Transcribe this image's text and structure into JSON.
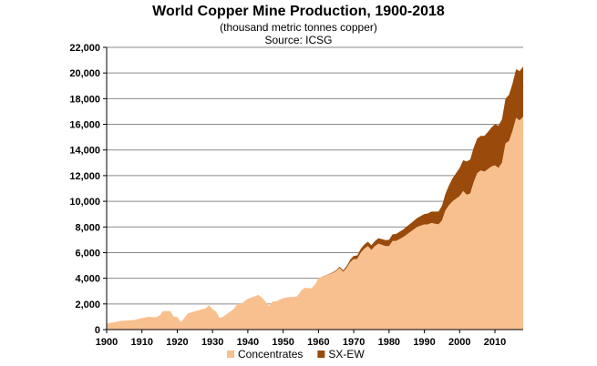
{
  "chart_data": {
    "type": "area",
    "title": "World Copper Mine Production, 1900-2018",
    "subtitle": "(thousand  metric tonnes copper)",
    "source": "Source: ICSG",
    "xlabel": "",
    "ylabel": "",
    "xlim": [
      1900,
      2018
    ],
    "ylim": [
      0,
      22000
    ],
    "grid": true,
    "legend_position": "bottom",
    "x_ticks": [
      "1900",
      "1910",
      "1920",
      "1930",
      "1940",
      "1950",
      "1960",
      "1970",
      "1980",
      "1990",
      "2000",
      "2010"
    ],
    "y_ticks": [
      "0",
      "2,000",
      "4,000",
      "6,000",
      "8,000",
      "10,000",
      "12,000",
      "14,000",
      "16,000",
      "18,000",
      "20,000",
      "22,000"
    ],
    "stacked": true,
    "series": [
      {
        "name": "Concentrates",
        "color": "#f9c08f",
        "points": [
          [
            1900,
            480
          ],
          [
            1902,
            560
          ],
          [
            1904,
            680
          ],
          [
            1906,
            720
          ],
          [
            1907,
            730
          ],
          [
            1908,
            760
          ],
          [
            1910,
            900
          ],
          [
            1912,
            1000
          ],
          [
            1914,
            960
          ],
          [
            1915,
            1100
          ],
          [
            1916,
            1450
          ],
          [
            1917,
            1450
          ],
          [
            1918,
            1450
          ],
          [
            1919,
            1000
          ],
          [
            1920,
            1000
          ],
          [
            1921,
            580
          ],
          [
            1922,
            900
          ],
          [
            1923,
            1250
          ],
          [
            1924,
            1350
          ],
          [
            1926,
            1500
          ],
          [
            1928,
            1650
          ],
          [
            1929,
            1900
          ],
          [
            1930,
            1600
          ],
          [
            1931,
            1400
          ],
          [
            1932,
            900
          ],
          [
            1933,
            1000
          ],
          [
            1934,
            1200
          ],
          [
            1936,
            1600
          ],
          [
            1937,
            2000
          ],
          [
            1938,
            2000
          ],
          [
            1939,
            2200
          ],
          [
            1940,
            2400
          ],
          [
            1942,
            2600
          ],
          [
            1943,
            2700
          ],
          [
            1944,
            2500
          ],
          [
            1945,
            2200
          ],
          [
            1946,
            1800
          ],
          [
            1947,
            2200
          ],
          [
            1948,
            2200
          ],
          [
            1950,
            2450
          ],
          [
            1952,
            2550
          ],
          [
            1953,
            2550
          ],
          [
            1954,
            2600
          ],
          [
            1955,
            3000
          ],
          [
            1956,
            3250
          ],
          [
            1957,
            3250
          ],
          [
            1958,
            3200
          ],
          [
            1959,
            3500
          ],
          [
            1960,
            4000
          ],
          [
            1962,
            4200
          ],
          [
            1964,
            4400
          ],
          [
            1965,
            4550
          ],
          [
            1966,
            4800
          ],
          [
            1967,
            4500
          ],
          [
            1968,
            4800
          ],
          [
            1969,
            5250
          ],
          [
            1970,
            5500
          ],
          [
            1971,
            5500
          ],
          [
            1972,
            6000
          ],
          [
            1973,
            6300
          ],
          [
            1974,
            6500
          ],
          [
            1975,
            6200
          ],
          [
            1976,
            6500
          ],
          [
            1977,
            6700
          ],
          [
            1978,
            6600
          ],
          [
            1979,
            6500
          ],
          [
            1980,
            6500
          ],
          [
            1981,
            6900
          ],
          [
            1982,
            6900
          ],
          [
            1983,
            7050
          ],
          [
            1984,
            7200
          ],
          [
            1985,
            7400
          ],
          [
            1986,
            7600
          ],
          [
            1987,
            7800
          ],
          [
            1988,
            8000
          ],
          [
            1989,
            8100
          ],
          [
            1990,
            8200
          ],
          [
            1991,
            8200
          ],
          [
            1992,
            8300
          ],
          [
            1993,
            8250
          ],
          [
            1994,
            8200
          ],
          [
            1995,
            8500
          ],
          [
            1996,
            9300
          ],
          [
            1997,
            9700
          ],
          [
            1998,
            10000
          ],
          [
            1999,
            10200
          ],
          [
            2000,
            10400
          ],
          [
            2001,
            10800
          ],
          [
            2002,
            10500
          ],
          [
            2003,
            10600
          ],
          [
            2004,
            11500
          ],
          [
            2005,
            12200
          ],
          [
            2006,
            12400
          ],
          [
            2007,
            12300
          ],
          [
            2008,
            12500
          ],
          [
            2009,
            12700
          ],
          [
            2010,
            12800
          ],
          [
            2011,
            12600
          ],
          [
            2012,
            13000
          ],
          [
            2013,
            14500
          ],
          [
            2014,
            14700
          ],
          [
            2015,
            15500
          ],
          [
            2016,
            16500
          ],
          [
            2017,
            16300
          ],
          [
            2018,
            16600
          ]
        ]
      },
      {
        "name": "SX-EW",
        "color": "#9a4a0a",
        "points": [
          [
            1900,
            0
          ],
          [
            1960,
            0
          ],
          [
            1964,
            50
          ],
          [
            1966,
            100
          ],
          [
            1968,
            150
          ],
          [
            1970,
            250
          ],
          [
            1972,
            300
          ],
          [
            1974,
            350
          ],
          [
            1976,
            400
          ],
          [
            1978,
            450
          ],
          [
            1980,
            500
          ],
          [
            1982,
            550
          ],
          [
            1984,
            600
          ],
          [
            1986,
            650
          ],
          [
            1988,
            700
          ],
          [
            1990,
            800
          ],
          [
            1992,
            900
          ],
          [
            1994,
            1000
          ],
          [
            1996,
            1300
          ],
          [
            1998,
            1800
          ],
          [
            2000,
            2200
          ],
          [
            2002,
            2600
          ],
          [
            2004,
            2700
          ],
          [
            2006,
            2700
          ],
          [
            2008,
            2900
          ],
          [
            2010,
            3200
          ],
          [
            2012,
            3400
          ],
          [
            2014,
            3600
          ],
          [
            2016,
            3800
          ],
          [
            2018,
            3900
          ]
        ]
      }
    ]
  }
}
